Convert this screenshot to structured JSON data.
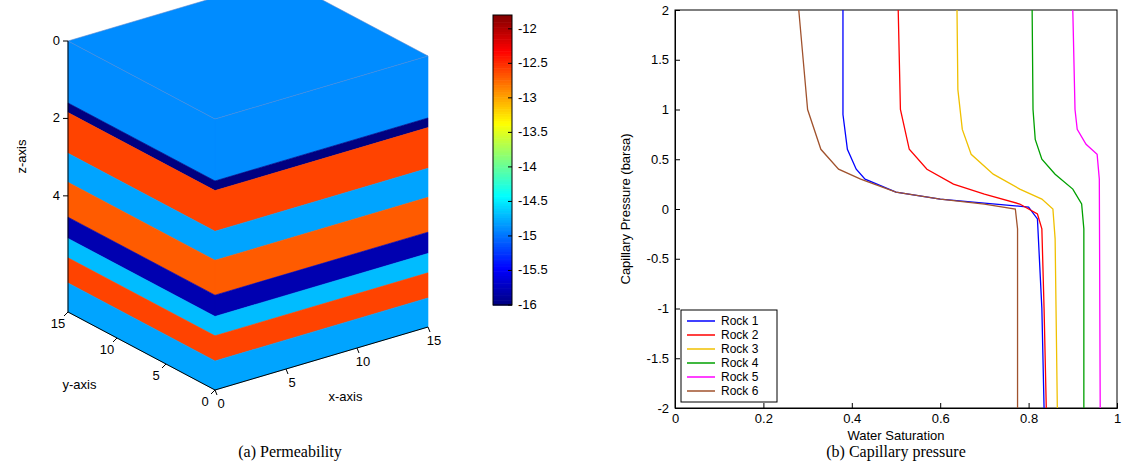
{
  "chart_data": [
    {
      "type": "heatmap",
      "title": "(a) Permeability",
      "x_label": "x-axis",
      "y_label": "y-axis",
      "z_label": "z-axis",
      "xlim": [
        0,
        15
      ],
      "xticks": [
        0,
        5,
        10,
        15
      ],
      "ylim": [
        0,
        15
      ],
      "yticks": [
        0,
        5,
        10,
        15
      ],
      "zlim": [
        0,
        7
      ],
      "zticks": [
        0,
        2,
        4
      ],
      "layers": {
        "z": [
          0,
          1.6,
          1.85,
          2.9,
          3.65,
          4.55,
          5.1,
          5.6,
          6.25,
          7
        ],
        "values": [
          -14.9,
          -16,
          -12.6,
          -14.8,
          -12.7,
          -15.8,
          -14.7,
          -12.6,
          -14.8
        ]
      },
      "colorbar": {
        "range": [
          -16,
          -11.8
        ],
        "ticks": [
          -16,
          -15.5,
          -15,
          -14.5,
          -14,
          -13.5,
          -13,
          -12.5,
          -12
        ]
      }
    },
    {
      "type": "line",
      "title": "(b) Capillary pressure",
      "x_label": "Water Saturation",
      "y_label": "Capillary Pressure (barsa)",
      "xlim": [
        0,
        1
      ],
      "xticks": [
        0,
        0.2,
        0.4,
        0.6,
        0.8,
        1
      ],
      "ylim": [
        -2,
        2
      ],
      "yticks": [
        -2,
        -1.5,
        -1,
        -0.5,
        0,
        0.5,
        1,
        1.5,
        2
      ],
      "legend": "lower left",
      "series": [
        {
          "name": "Rock 1",
          "color": "#0000ff",
          "x": [
            0.38,
            0.38,
            0.39,
            0.41,
            0.43,
            0.5,
            0.6,
            0.7,
            0.8,
            0.82,
            0.83,
            0.835
          ],
          "values": [
            2,
            0.95,
            0.6,
            0.4,
            0.3,
            0.17,
            0.1,
            0.06,
            0.02,
            -0.1,
            -1,
            -2
          ]
        },
        {
          "name": "Rock 2",
          "color": "#ff0000",
          "x": [
            0.505,
            0.51,
            0.53,
            0.57,
            0.63,
            0.7,
            0.78,
            0.82,
            0.83,
            0.835,
            0.84
          ],
          "values": [
            2,
            1.0,
            0.6,
            0.4,
            0.25,
            0.15,
            0.05,
            -0.05,
            -0.2,
            -1,
            -2
          ]
        },
        {
          "name": "Rock 3",
          "color": "#f0c000",
          "x": [
            0.638,
            0.64,
            0.65,
            0.67,
            0.72,
            0.78,
            0.83,
            0.855,
            0.86,
            0.865
          ],
          "values": [
            2,
            1.2,
            0.8,
            0.55,
            0.35,
            0.2,
            0.1,
            0.0,
            -0.3,
            -2
          ]
        },
        {
          "name": "Rock 4",
          "color": "#00a000",
          "x": [
            0.808,
            0.81,
            0.815,
            0.83,
            0.86,
            0.9,
            0.92,
            0.925,
            0.925
          ],
          "values": [
            2,
            1.0,
            0.7,
            0.5,
            0.35,
            0.2,
            0.05,
            -0.2,
            -2
          ]
        },
        {
          "name": "Rock 5",
          "color": "#ff00ff",
          "x": [
            0.9,
            0.905,
            0.91,
            0.93,
            0.955,
            0.96,
            0.962
          ],
          "values": [
            2,
            1.0,
            0.8,
            0.65,
            0.55,
            0.3,
            -2
          ]
        },
        {
          "name": "Rock 6",
          "color": "#a0522d",
          "x": [
            0.28,
            0.29,
            0.3,
            0.33,
            0.37,
            0.42,
            0.5,
            0.6,
            0.7,
            0.77,
            0.775,
            0.775
          ],
          "values": [
            2,
            1.5,
            1.0,
            0.6,
            0.4,
            0.3,
            0.17,
            0.1,
            0.05,
            0.0,
            -0.2,
            -2
          ]
        }
      ]
    }
  ]
}
